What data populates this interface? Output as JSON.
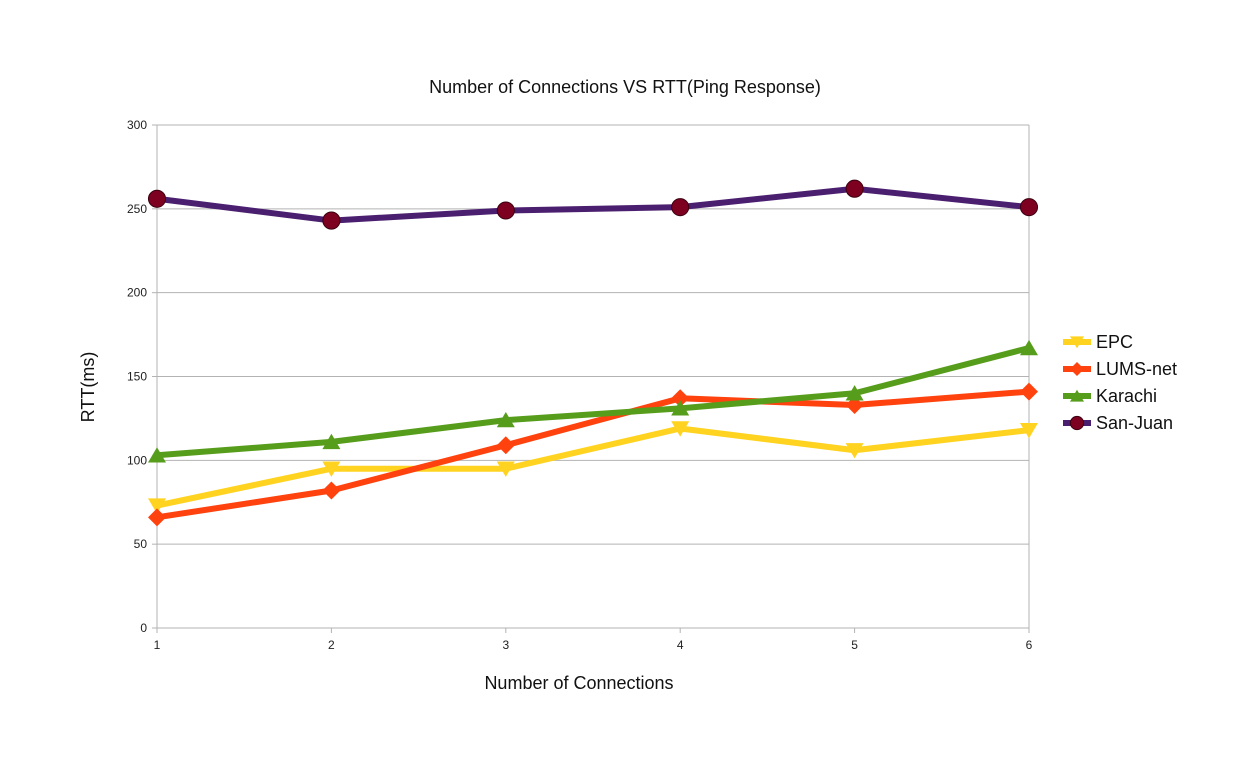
{
  "chart_data": {
    "type": "line",
    "title": "Number of Connections VS RTT(Ping Response)",
    "xlabel": "Number of Connections",
    "ylabel": "RTT(ms)",
    "x": [
      1,
      2,
      3,
      4,
      5,
      6
    ],
    "x_tick_labels": [
      "1",
      "2",
      "3",
      "4",
      "5",
      "6"
    ],
    "ylim": [
      0,
      300
    ],
    "y_ticks": [
      0,
      50,
      100,
      150,
      200,
      250,
      300
    ],
    "y_tick_labels": [
      "0",
      "50",
      "100",
      "150",
      "200",
      "250",
      "300"
    ],
    "grid": true,
    "legend_position": "right",
    "series": [
      {
        "name": "EPC",
        "color": "#FFD320",
        "marker": "triangle-down",
        "values": [
          73,
          95,
          95,
          119,
          106,
          118
        ]
      },
      {
        "name": "LUMS-net",
        "color": "#FF420E",
        "marker": "diamond",
        "values": [
          66,
          82,
          109,
          137,
          133,
          141
        ]
      },
      {
        "name": "Karachi",
        "color": "#579D1C",
        "marker": "triangle-up",
        "values": [
          103,
          111,
          124,
          131,
          140,
          167
        ]
      },
      {
        "name": "San-Juan",
        "color": "#4B1F6F",
        "marker": "circle",
        "marker_color": "#7E0021",
        "values": [
          256,
          243,
          249,
          251,
          262,
          251
        ]
      }
    ]
  }
}
